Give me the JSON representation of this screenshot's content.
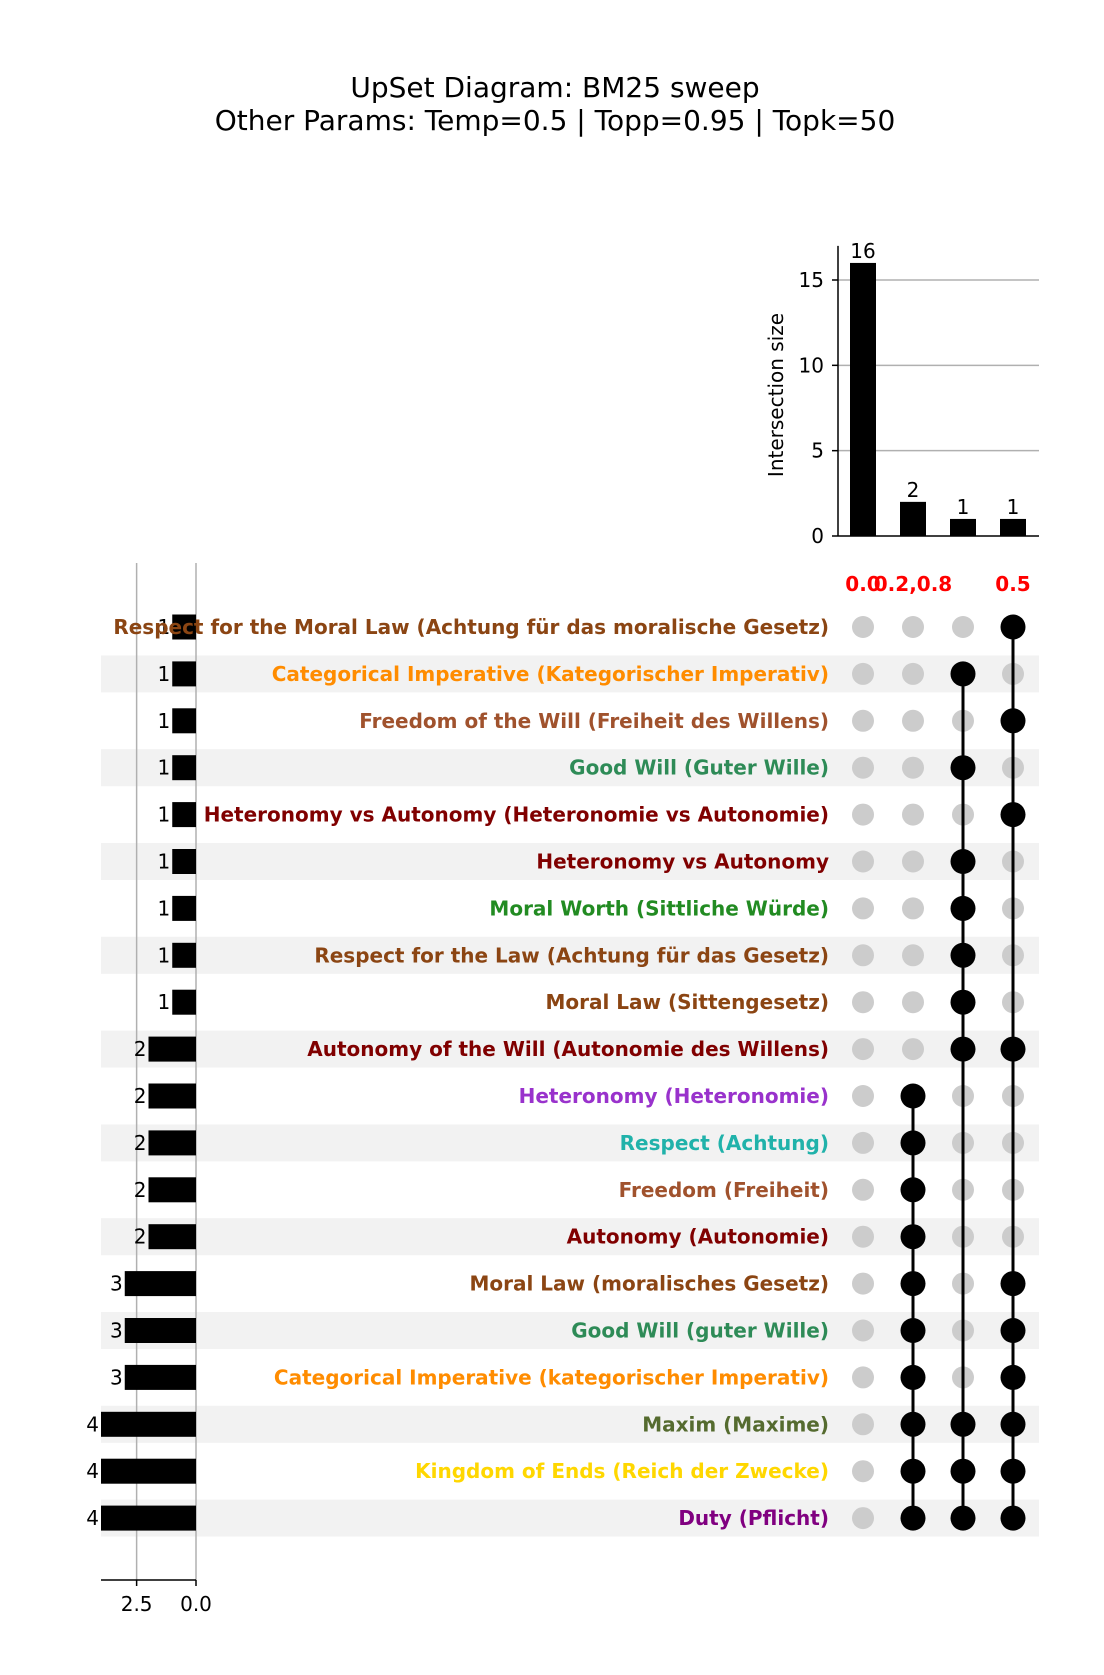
{
  "chart_data": {
    "type": "upset",
    "title": "UpSet Diagram: BM25 sweep",
    "subtitle": "Other Params: Temp=0.5 | Topp=0.95 | Topk=50",
    "ylabel": "Intersection size",
    "ylim": [
      0,
      17
    ],
    "yticks": [
      0,
      5,
      10,
      15
    ],
    "set_size_xlim": [
      4,
      0
    ],
    "set_size_xticks": [
      2.5,
      0.0
    ],
    "set_size_xtick_labels": [
      "2.5",
      "0.0"
    ],
    "grid": true,
    "highlight_color": "#ff0000",
    "combinations": [
      {
        "label": "0.0",
        "size": 16
      },
      {
        "label": "0.2,0.8",
        "size": 2
      },
      {
        "label": "",
        "size": 1
      },
      {
        "label": "0.5",
        "size": 1
      }
    ],
    "sets": [
      {
        "name": "Respect for the Moral Law (Achtung für das moralische Gesetz)",
        "size": 1,
        "color": "#8b4513",
        "members": [
          3
        ]
      },
      {
        "name": "Categorical Imperative (Kategorischer Imperativ)",
        "size": 1,
        "color": "#ff8c00",
        "members": [
          2
        ]
      },
      {
        "name": "Freedom of the Will (Freiheit des Willens)",
        "size": 1,
        "color": "#a0522d",
        "members": [
          3
        ]
      },
      {
        "name": "Good Will (Guter Wille)",
        "size": 1,
        "color": "#2e8b57",
        "members": [
          2
        ]
      },
      {
        "name": "Heteronomy vs Autonomy (Heteronomie vs Autonomie)",
        "size": 1,
        "color": "#800000",
        "members": [
          3
        ]
      },
      {
        "name": "Heteronomy vs Autonomy",
        "size": 1,
        "color": "#800000",
        "members": [
          2
        ]
      },
      {
        "name": "Moral Worth (Sittliche Würde)",
        "size": 1,
        "color": "#228b22",
        "members": [
          2
        ]
      },
      {
        "name": "Respect for the Law (Achtung für das Gesetz)",
        "size": 1,
        "color": "#8b4513",
        "members": [
          2
        ]
      },
      {
        "name": "Moral Law (Sittengesetz)",
        "size": 1,
        "color": "#8b4513",
        "members": [
          2
        ]
      },
      {
        "name": "Autonomy of the Will (Autonomie des Willens)",
        "size": 2,
        "color": "#800000",
        "members": [
          2,
          3
        ]
      },
      {
        "name": "Heteronomy (Heteronomie)",
        "size": 2,
        "color": "#9932cc",
        "members": [
          1
        ]
      },
      {
        "name": "Respect (Achtung)",
        "size": 2,
        "color": "#20b2aa",
        "members": [
          1
        ]
      },
      {
        "name": "Freedom (Freiheit)",
        "size": 2,
        "color": "#a0522d",
        "members": [
          1
        ]
      },
      {
        "name": "Autonomy (Autonomie)",
        "size": 2,
        "color": "#800000",
        "members": [
          1
        ]
      },
      {
        "name": "Moral Law (moralisches Gesetz)",
        "size": 3,
        "color": "#8b4513",
        "members": [
          1,
          3
        ]
      },
      {
        "name": "Good Will (guter Wille)",
        "size": 3,
        "color": "#2e8b57",
        "members": [
          1,
          3
        ]
      },
      {
        "name": "Categorical Imperative (kategorischer Imperativ)",
        "size": 3,
        "color": "#ff8c00",
        "members": [
          1,
          3
        ]
      },
      {
        "name": "Maxim (Maxime)",
        "size": 4,
        "color": "#556b2f",
        "members": [
          1,
          2,
          3
        ]
      },
      {
        "name": "Kingdom of Ends (Reich der Zwecke)",
        "size": 4,
        "color": "#ffd700",
        "members": [
          1,
          2,
          3
        ]
      },
      {
        "name": "Duty (Pflicht)",
        "size": 4,
        "color": "#800080",
        "members": [
          1,
          2,
          3
        ]
      }
    ]
  }
}
